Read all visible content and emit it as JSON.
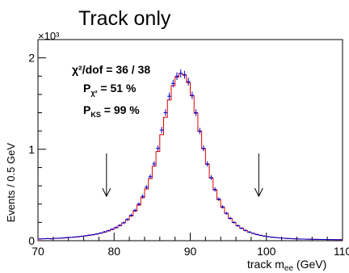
{
  "chart_data": {
    "type": "histogram",
    "title": "Track only",
    "xlabel": "track m_ee (GeV)",
    "ylabel": "Events / 0.5 GeV",
    "y_multiplier": "×10³",
    "xlim": [
      70,
      110
    ],
    "ylim": [
      0,
      2200
    ],
    "xticks": [
      70,
      80,
      90,
      100,
      110
    ],
    "yticks": [
      0,
      1000,
      2000
    ],
    "ytick_labels": [
      "0",
      "1",
      "2"
    ],
    "bin_width": 0.5,
    "stats": {
      "chi2_label": "χ²/dof = 36 / 38",
      "pchi2_label": "P",
      "pchi2_sub": "χ²",
      "pchi2_value": " = 51 %",
      "pks_label": "P",
      "pks_sub": "KS",
      "pks_value": " = 99 %"
    },
    "arrows_x": [
      79,
      99
    ],
    "series": [
      {
        "role": "data",
        "color": "#0000cc",
        "style": "points with error bars"
      },
      {
        "role": "fit",
        "color": "#dd0000",
        "style": "step histogram"
      }
    ],
    "x": [
      70.25,
      70.75,
      71.25,
      71.75,
      72.25,
      72.75,
      73.25,
      73.75,
      74.25,
      74.75,
      75.25,
      75.75,
      76.25,
      76.75,
      77.25,
      77.75,
      78.25,
      78.75,
      79.25,
      79.75,
      80.25,
      80.75,
      81.25,
      81.75,
      82.25,
      82.75,
      83.25,
      83.75,
      84.25,
      84.75,
      85.25,
      85.75,
      86.25,
      86.75,
      87.25,
      87.75,
      88.25,
      88.75,
      89.25,
      89.75,
      90.25,
      90.75,
      91.25,
      91.75,
      92.25,
      92.75,
      93.25,
      93.75,
      94.25,
      94.75,
      95.25,
      95.75,
      96.25,
      96.75,
      97.25,
      97.75,
      98.25,
      98.75,
      99.25,
      99.75,
      100.25,
      100.75,
      101.25,
      101.75,
      102.25,
      102.75,
      103.25,
      103.75,
      104.25,
      104.75,
      105.25,
      105.75,
      106.25,
      106.75,
      107.25,
      107.75,
      108.25,
      108.75,
      109.25,
      109.75
    ],
    "data": [
      18,
      22,
      24,
      20,
      26,
      28,
      30,
      34,
      36,
      40,
      44,
      48,
      54,
      60,
      66,
      74,
      84,
      96,
      110,
      126,
      144,
      168,
      196,
      232,
      278,
      332,
      400,
      484,
      584,
      700,
      840,
      1010,
      1210,
      1400,
      1580,
      1720,
      1800,
      1830,
      1815,
      1740,
      1590,
      1400,
      1200,
      1010,
      840,
      690,
      560,
      455,
      370,
      300,
      245,
      200,
      164,
      136,
      112,
      94,
      80,
      68,
      58,
      50,
      44,
      38,
      34,
      30,
      27,
      24,
      22,
      20,
      19,
      18,
      17,
      16,
      15,
      14,
      14,
      13,
      12,
      12,
      11,
      11
    ],
    "fit": [
      20,
      21,
      22,
      23,
      25,
      27,
      29,
      32,
      35,
      38,
      42,
      47,
      52,
      58,
      65,
      73,
      83,
      94,
      107,
      123,
      142,
      165,
      194,
      229,
      272,
      325,
      390,
      470,
      566,
      680,
      815,
      975,
      1160,
      1350,
      1540,
      1695,
      1790,
      1830,
      1810,
      1730,
      1585,
      1395,
      1195,
      1005,
      835,
      685,
      555,
      450,
      365,
      298,
      243,
      199,
      164,
      136,
      113,
      95,
      80,
      68,
      58,
      50,
      44,
      39,
      35,
      31,
      28,
      25,
      23,
      21,
      19,
      18,
      17,
      16,
      15,
      14,
      13,
      13,
      12,
      12,
      11,
      11
    ],
    "errors": [
      4,
      5,
      5,
      4,
      5,
      5,
      5,
      6,
      6,
      6,
      7,
      7,
      7,
      8,
      8,
      9,
      9,
      10,
      10,
      11,
      12,
      13,
      14,
      15,
      17,
      18,
      20,
      22,
      24,
      26,
      29,
      32,
      35,
      37,
      40,
      41,
      42,
      43,
      43,
      42,
      40,
      37,
      35,
      32,
      29,
      26,
      24,
      21,
      19,
      17,
      16,
      14,
      13,
      12,
      11,
      10,
      9,
      8,
      8,
      7,
      7,
      6,
      6,
      5,
      5,
      5,
      5,
      4,
      4,
      4,
      4,
      4,
      4,
      4,
      4,
      4,
      3,
      3,
      3,
      3
    ]
  }
}
